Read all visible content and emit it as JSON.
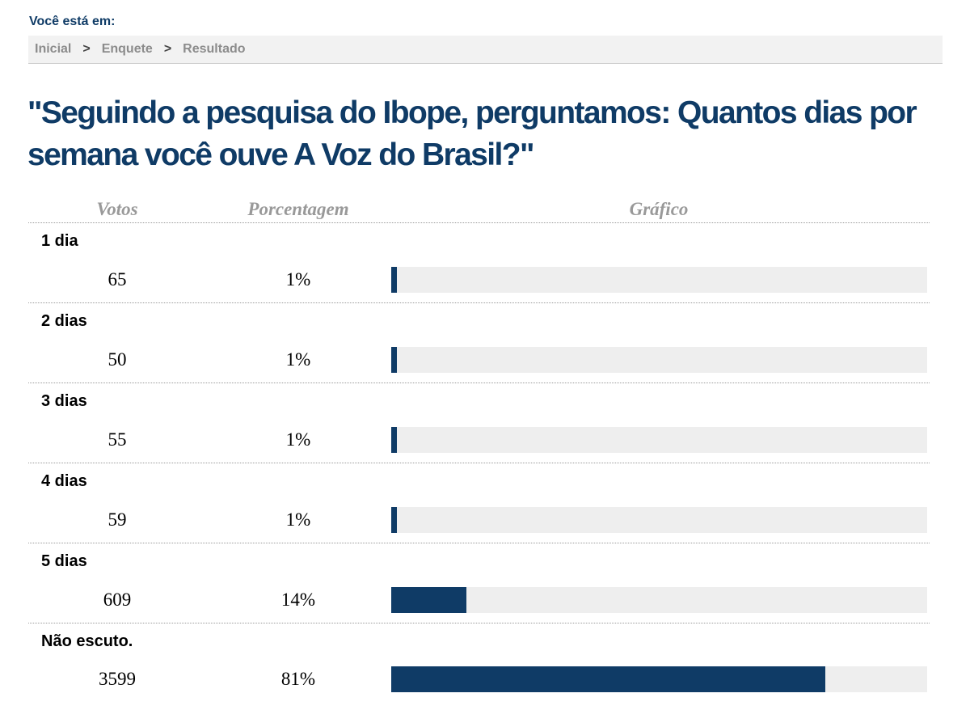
{
  "breadcrumb": {
    "heading": "Você está em:",
    "items": [
      "Inicial",
      "Enquete",
      "Resultado"
    ],
    "separator": ">"
  },
  "question": "\"Seguindo a pesquisa do Ibope, perguntamos: Quantos dias por semana você ouve A Voz do Brasil?\"",
  "table": {
    "headers": {
      "votes": "Votos",
      "percent": "Porcentagem",
      "chart": "Gráfico"
    },
    "rows": [
      {
        "label": "1 dia",
        "votes": "65",
        "percent": "1%"
      },
      {
        "label": "2 dias",
        "votes": "50",
        "percent": "1%"
      },
      {
        "label": "3 dias",
        "votes": "55",
        "percent": "1%"
      },
      {
        "label": "4 dias",
        "votes": "59",
        "percent": "1%"
      },
      {
        "label": "5 dias",
        "votes": "609",
        "percent": "14%"
      },
      {
        "label": "Não escuto.",
        "votes": "3599",
        "percent": "81%"
      }
    ]
  },
  "chart_data": {
    "type": "bar",
    "orientation": "horizontal",
    "categories": [
      "1 dia",
      "2 dias",
      "3 dias",
      "4 dias",
      "5 dias",
      "Não escuto."
    ],
    "values": [
      1,
      1,
      1,
      1,
      14,
      81
    ],
    "xlim": [
      0,
      100
    ]
  },
  "colors": {
    "brand": "#0f3b66",
    "bar_fill": "#0f3b66",
    "bar_track": "#eeeeee",
    "header_text": "#999999"
  }
}
